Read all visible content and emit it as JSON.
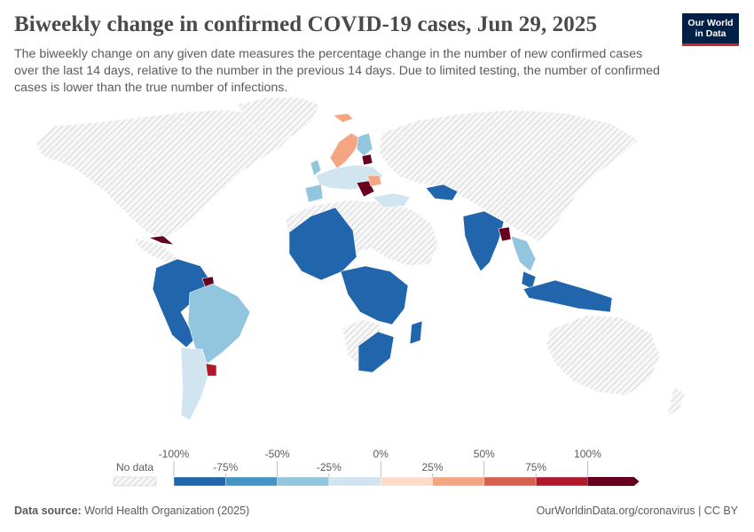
{
  "header": {
    "title": "Biweekly change in confirmed COVID-19 cases, Jun 29, 2025",
    "subtitle": "The biweekly change on any given date measures the percentage change in the number of new confirmed cases over the last 14 days, relative to the number in the previous 14 days. Due to limited testing, the number of confirmed cases is lower than the true number of infections.",
    "logo_line1": "Our World",
    "logo_line2": "in Data"
  },
  "legend": {
    "no_data_label": "No data",
    "ticks_top": [
      "-100%",
      "-50%",
      "0%",
      "50%",
      "100%"
    ],
    "ticks_bottom": [
      "-75%",
      "-25%",
      "25%",
      "75%"
    ],
    "bins": [
      {
        "from": -100,
        "to": -75,
        "color": "#2166ac"
      },
      {
        "from": -75,
        "to": -50,
        "color": "#4393c3"
      },
      {
        "from": -50,
        "to": -25,
        "color": "#92c5de"
      },
      {
        "from": -25,
        "to": 0,
        "color": "#d1e5f0"
      },
      {
        "from": 0,
        "to": 25,
        "color": "#fddbc7"
      },
      {
        "from": 25,
        "to": 50,
        "color": "#f4a582"
      },
      {
        "from": 50,
        "to": 75,
        "color": "#d6604d"
      },
      {
        "from": 75,
        "to": 100,
        "color": "#b2182b"
      },
      {
        "from": 100,
        "to": 125,
        "color": "#67001f"
      }
    ]
  },
  "footer": {
    "source_label": "Data source:",
    "source_value": "World Health Organization (2025)",
    "url": "OurWorldinData.org/coronavirus | CC BY"
  },
  "colors": {
    "nodata_hatch": "#d8d8d8",
    "border": "#ffffff",
    "text": "#5b5b5b"
  }
}
